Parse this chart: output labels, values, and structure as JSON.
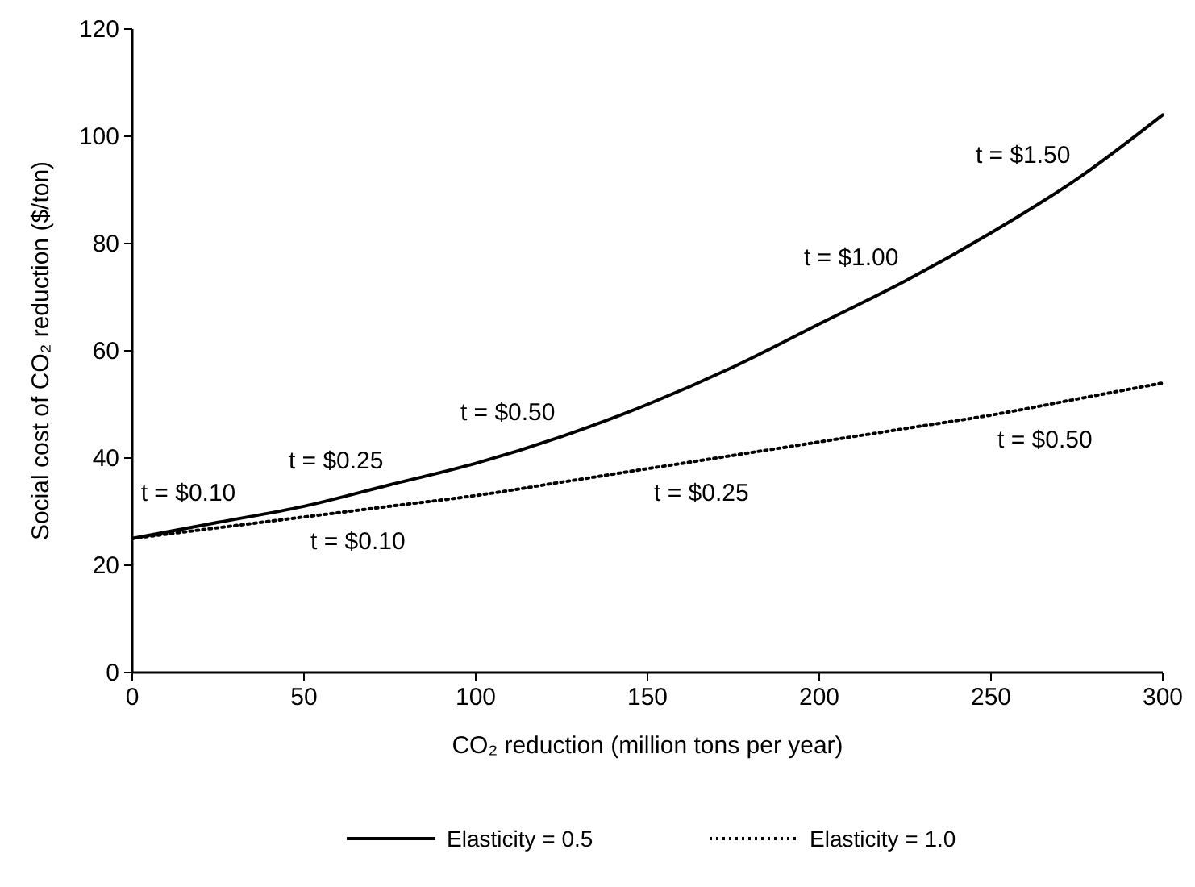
{
  "chart_data": {
    "type": "line",
    "xlabel": "CO₂ reduction (million tons per year)",
    "ylabel": "Social cost of CO₂ reduction ($/ton)",
    "x": [
      0,
      25,
      50,
      75,
      100,
      125,
      150,
      175,
      200,
      225,
      250,
      275,
      300
    ],
    "series": [
      {
        "name": "Elasticity = 0.5",
        "color": "#000000",
        "line_style": "solid",
        "values": [
          25,
          28,
          31,
          35,
          39,
          44,
          50,
          57,
          65,
          73,
          82,
          92,
          104
        ]
      },
      {
        "name": "Elasticity = 1.0",
        "color": "#000000",
        "line_style": "dotted",
        "values": [
          25,
          27,
          29,
          31,
          33,
          35.5,
          38,
          40.5,
          43,
          45.5,
          48,
          51,
          54
        ]
      }
    ],
    "xlim": [
      0,
      300
    ],
    "xticks": [
      0,
      50,
      100,
      150,
      200,
      250,
      300
    ],
    "ylim": [
      0,
      120
    ],
    "yticks": [
      0,
      20,
      40,
      60,
      80,
      100,
      120
    ],
    "legend": "bottom",
    "annotations": [
      {
        "text": "t = $0.10",
        "x": 32,
        "y": 29
      },
      {
        "text": "t = $0.25",
        "x": 75,
        "y": 35
      },
      {
        "text": "t = $0.50",
        "x": 125,
        "y": 44
      },
      {
        "text": "t = $1.00",
        "x": 225,
        "y": 73
      },
      {
        "text": "t = $1.50",
        "x": 275,
        "y": 92
      },
      {
        "text": "t = $0.10",
        "x": 50,
        "y": 29
      },
      {
        "text": "t = $0.25",
        "x": 150,
        "y": 38
      },
      {
        "text": "t = $0.50",
        "x": 250,
        "y": 48
      }
    ]
  }
}
